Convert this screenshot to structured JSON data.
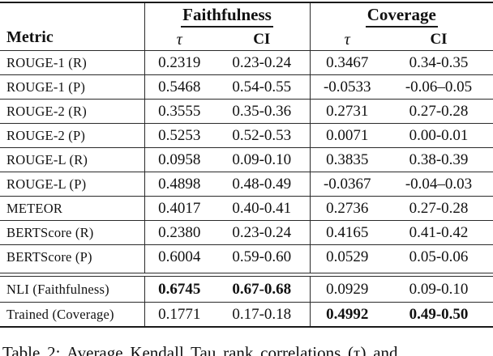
{
  "table": {
    "header": {
      "metric_label": "Metric",
      "group1": "Faithfulness",
      "group2": "Coverage",
      "tau_label": "τ",
      "ci_label": "CI"
    },
    "rows": [
      {
        "metric": "ROUGE-1 (R)",
        "f_tau": "0.2319",
        "f_ci": "0.23-0.24",
        "c_tau": "0.3467",
        "c_ci": "0.34-0.35"
      },
      {
        "metric": "ROUGE-1 (P)",
        "f_tau": "0.5468",
        "f_ci": "0.54-0.55",
        "c_tau": "-0.0533",
        "c_ci": "-0.06–0.05"
      },
      {
        "metric": "ROUGE-2 (R)",
        "f_tau": "0.3555",
        "f_ci": "0.35-0.36",
        "c_tau": "0.2731",
        "c_ci": "0.27-0.28"
      },
      {
        "metric": "ROUGE-2 (P)",
        "f_tau": "0.5253",
        "f_ci": "0.52-0.53",
        "c_tau": "0.0071",
        "c_ci": "0.00-0.01"
      },
      {
        "metric": "ROUGE-L (R)",
        "f_tau": "0.0958",
        "f_ci": "0.09-0.10",
        "c_tau": "0.3835",
        "c_ci": "0.38-0.39"
      },
      {
        "metric": "ROUGE-L (P)",
        "f_tau": "0.4898",
        "f_ci": "0.48-0.49",
        "c_tau": "-0.0367",
        "c_ci": "-0.04–0.03"
      },
      {
        "metric": "METEOR",
        "f_tau": "0.4017",
        "f_ci": "0.40-0.41",
        "c_tau": "0.2736",
        "c_ci": "0.27-0.28"
      },
      {
        "metric": "BERTScore (R)",
        "f_tau": "0.2380",
        "f_ci": "0.23-0.24",
        "c_tau": "0.4165",
        "c_ci": "0.41-0.42"
      },
      {
        "metric": "BERTScore (P)",
        "f_tau": "0.6004",
        "f_ci": "0.59-0.60",
        "c_tau": "0.0529",
        "c_ci": "0.05-0.06"
      }
    ],
    "bottom_rows": [
      {
        "metric": "NLI (Faithfulness)",
        "f_tau": "0.6745",
        "f_ci": "0.67-0.68",
        "c_tau": "0.0929",
        "c_ci": "0.09-0.10"
      },
      {
        "metric": "Trained (Coverage)",
        "f_tau": "0.1771",
        "f_ci": "0.17-0.18",
        "c_tau": "0.4992",
        "c_ci": "0.49-0.50"
      }
    ]
  },
  "caption": "Table 2: Average Kendall Tau rank correlations (τ) and"
}
